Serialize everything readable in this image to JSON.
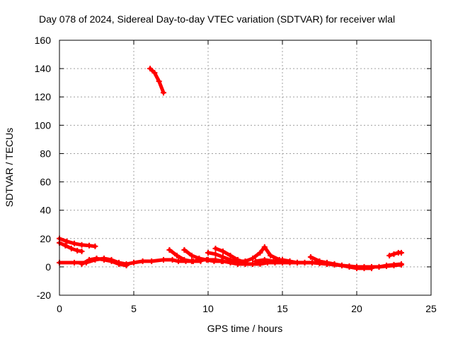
{
  "chart_data": {
    "type": "scatter",
    "title": "Day 078 of 2024, Sidereal Day-to-day VTEC variation (SDTVAR) for receiver wlal",
    "xlabel": "GPS time / hours",
    "ylabel": "SDTVAR / TECUs",
    "xlim": [
      0,
      25
    ],
    "ylim": [
      -20,
      160
    ],
    "xticks": [
      0,
      5,
      10,
      15,
      20,
      25
    ],
    "yticks": [
      -20,
      0,
      20,
      40,
      60,
      80,
      100,
      120,
      140,
      160
    ],
    "grid": true,
    "legend": "none",
    "color": "#ff0000",
    "marker": "plus",
    "series": [
      {
        "x": [
          0,
          0.5,
          1.0,
          1.5,
          2.0,
          2.4
        ],
        "y": [
          20,
          18,
          16.5,
          15.5,
          15,
          14.5
        ]
      },
      {
        "x": [
          0,
          0.4,
          0.8,
          1.2,
          1.5
        ],
        "y": [
          17,
          15,
          13,
          11.5,
          11
        ]
      },
      {
        "x": [
          0,
          1.0,
          1.8,
          2.4,
          3.0,
          3.5,
          4.0,
          4.5,
          5.0,
          5.6,
          6.2,
          7.0,
          7.6,
          8.0,
          8.5,
          9.0,
          9.5,
          10.0,
          10.5,
          11.0,
          11.5,
          12.0,
          12.5,
          13.0,
          13.5,
          14.0,
          14.5,
          15.0,
          15.5,
          16.0,
          16.5,
          17.0,
          17.5,
          18.0,
          18.5,
          19.0,
          19.5,
          20.0,
          20.5,
          21.0,
          21.5,
          22.0,
          22.5,
          23.0
        ],
        "y": [
          3,
          3,
          3,
          5,
          6,
          5,
          3,
          2,
          3,
          4,
          4,
          5,
          5,
          4,
          4,
          4,
          5,
          5,
          5,
          4,
          3,
          2,
          2,
          2,
          2,
          3,
          3,
          3,
          3,
          3,
          3,
          3,
          2.5,
          2,
          1.5,
          1,
          0.5,
          0,
          0,
          0,
          0,
          0.5,
          1,
          1.5
        ]
      },
      {
        "x": [
          1.5,
          2.0,
          2.5,
          3.0,
          3.5,
          4.0,
          4.5
        ],
        "y": [
          2,
          5,
          6,
          5,
          4,
          2,
          1
        ]
      },
      {
        "x": [
          6.1,
          6.4,
          6.7,
          7.0
        ],
        "y": [
          140,
          137,
          131,
          123
        ]
      },
      {
        "x": [
          7.4,
          7.9,
          8.4,
          8.9,
          9.5
        ],
        "y": [
          12,
          8,
          5,
          4,
          4
        ]
      },
      {
        "x": [
          8.4,
          8.9,
          9.4,
          9.9,
          10.4,
          10.9
        ],
        "y": [
          12,
          8,
          6,
          5,
          4,
          4
        ]
      },
      {
        "x": [
          10.0,
          10.5,
          11.0,
          11.5,
          12.0,
          12.5,
          13.0
        ],
        "y": [
          10,
          9,
          7,
          5,
          3,
          2,
          2
        ]
      },
      {
        "x": [
          10.5,
          11.0,
          11.5,
          12.0,
          12.5
        ],
        "y": [
          13,
          11,
          8,
          5,
          3
        ]
      },
      {
        "x": [
          12.0,
          12.5,
          13.0,
          13.5,
          13.8,
          14.2,
          14.8,
          15.5
        ],
        "y": [
          4,
          4,
          6,
          10,
          14,
          8,
          5,
          4
        ]
      },
      {
        "x": [
          13.2,
          13.8,
          14.4,
          15.0,
          16.0
        ],
        "y": [
          4,
          5,
          4,
          4,
          3
        ]
      },
      {
        "x": [
          15.0,
          15.5,
          16.0,
          16.5,
          17.0,
          17.5,
          18.0,
          18.5,
          19.0
        ],
        "y": [
          5,
          4,
          3,
          3,
          3,
          3,
          2,
          2,
          1
        ]
      },
      {
        "x": [
          16.9,
          17.5,
          18.0,
          18.5,
          19.0,
          19.5,
          20.0,
          20.5,
          21.0
        ],
        "y": [
          7,
          4,
          3,
          2,
          1,
          0,
          -1,
          -1,
          -1
        ]
      },
      {
        "x": [
          22.2,
          22.5,
          22.8,
          23.0
        ],
        "y": [
          8,
          9,
          10,
          10
        ]
      },
      {
        "x": [
          21.5,
          22.0,
          22.5,
          23.0
        ],
        "y": [
          0,
          1,
          1.5,
          2
        ]
      }
    ]
  }
}
